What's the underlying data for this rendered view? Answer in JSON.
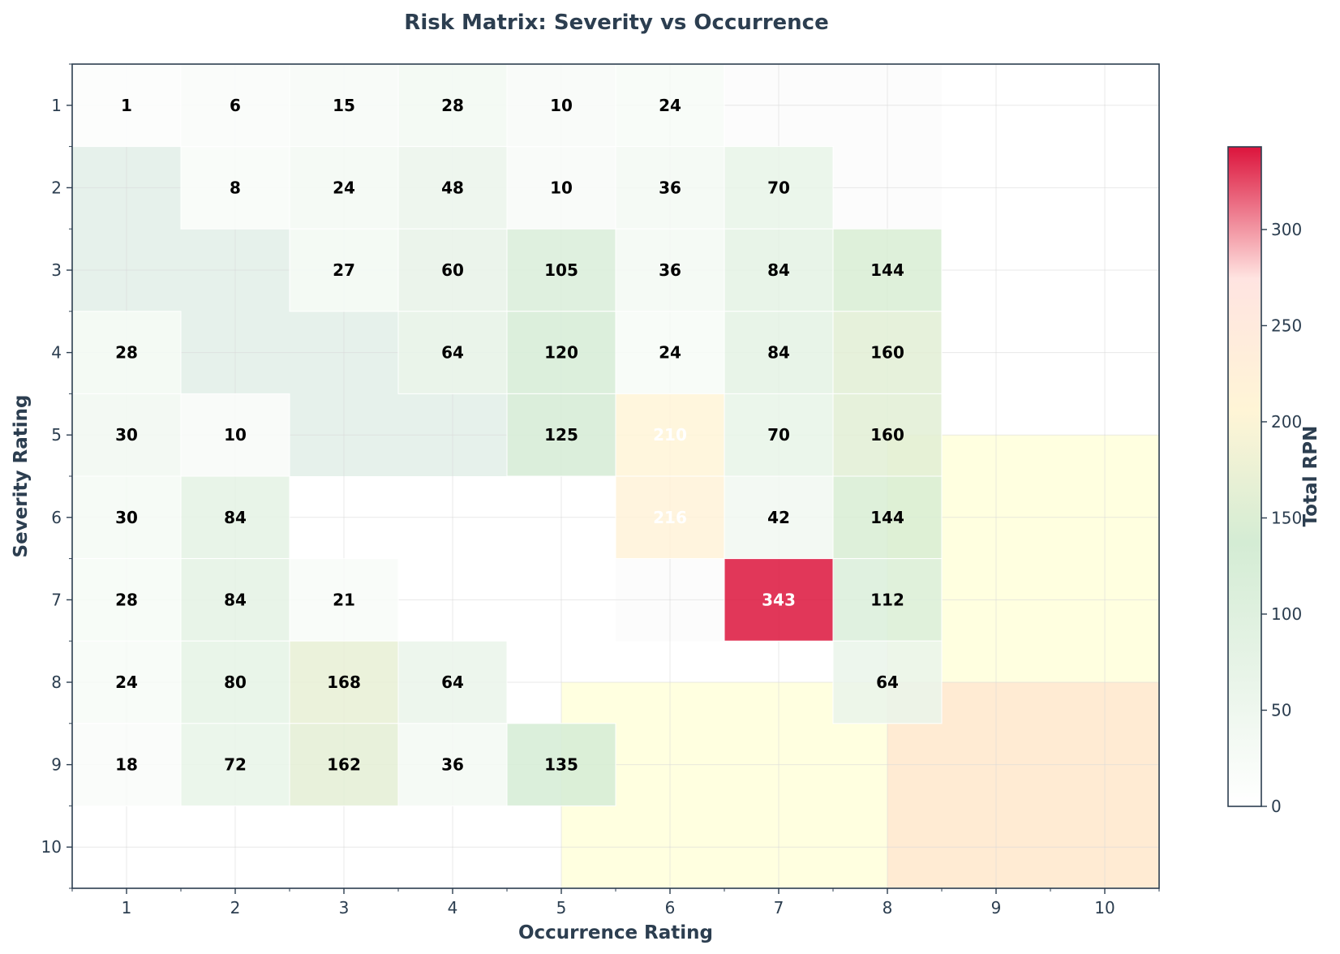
{
  "chart_data": {
    "type": "heatmap",
    "title": "Risk Matrix: Severity vs Occurrence",
    "xlabel": "Occurrence Rating",
    "ylabel": "Severity Rating",
    "x_ticks": [
      1,
      2,
      3,
      4,
      5,
      6,
      7,
      8,
      9,
      10
    ],
    "y_ticks": [
      1,
      2,
      3,
      4,
      5,
      6,
      7,
      8,
      9,
      10
    ],
    "xlim": [
      0.5,
      10.5
    ],
    "ylim": [
      10.5,
      0.5
    ],
    "y_axis_inverted": true,
    "grid": true,
    "colorbar": {
      "label": "Total RPN",
      "min": 0,
      "max": 343,
      "ticks": [
        0,
        50,
        100,
        150,
        200,
        250,
        300
      ],
      "colors": [
        "#ffffff",
        "#e8f4e8",
        "#d4ecd4",
        "#fff5d6",
        "#ffe4e1",
        "#dc143c"
      ]
    },
    "zones": [
      {
        "x": [
          0.5,
          5.5
        ],
        "y": [
          0.5,
          5.5
        ],
        "color": "#2e8b57",
        "level": "low"
      },
      {
        "x": [
          5.5,
          8.5
        ],
        "y": [
          0.5,
          7.5
        ],
        "color": "#c8c8c8",
        "level": "medium-low"
      },
      {
        "x": [
          5,
          10.5
        ],
        "y": [
          8,
          10.5
        ],
        "color": "#ffff66",
        "level": "medium"
      },
      {
        "x": [
          8,
          10.5
        ],
        "y": [
          5,
          8
        ],
        "color": "#ffff66",
        "level": "medium"
      },
      {
        "x": [
          8,
          10.5
        ],
        "y": [
          8,
          10.5
        ],
        "color": "#ff9aa2",
        "level": "high"
      }
    ],
    "cells": [
      {
        "occurrence": 1,
        "severity": 1,
        "rpn": 1
      },
      {
        "occurrence": 2,
        "severity": 1,
        "rpn": 6
      },
      {
        "occurrence": 3,
        "severity": 1,
        "rpn": 15
      },
      {
        "occurrence": 4,
        "severity": 1,
        "rpn": 28
      },
      {
        "occurrence": 5,
        "severity": 1,
        "rpn": 10
      },
      {
        "occurrence": 6,
        "severity": 1,
        "rpn": 24
      },
      {
        "occurrence": 2,
        "severity": 2,
        "rpn": 8
      },
      {
        "occurrence": 3,
        "severity": 2,
        "rpn": 24
      },
      {
        "occurrence": 4,
        "severity": 2,
        "rpn": 48
      },
      {
        "occurrence": 5,
        "severity": 2,
        "rpn": 10
      },
      {
        "occurrence": 6,
        "severity": 2,
        "rpn": 36
      },
      {
        "occurrence": 7,
        "severity": 2,
        "rpn": 70
      },
      {
        "occurrence": 3,
        "severity": 3,
        "rpn": 27
      },
      {
        "occurrence": 4,
        "severity": 3,
        "rpn": 60
      },
      {
        "occurrence": 5,
        "severity": 3,
        "rpn": 105
      },
      {
        "occurrence": 6,
        "severity": 3,
        "rpn": 36
      },
      {
        "occurrence": 7,
        "severity": 3,
        "rpn": 84
      },
      {
        "occurrence": 8,
        "severity": 3,
        "rpn": 144
      },
      {
        "occurrence": 1,
        "severity": 4,
        "rpn": 28
      },
      {
        "occurrence": 4,
        "severity": 4,
        "rpn": 64
      },
      {
        "occurrence": 5,
        "severity": 4,
        "rpn": 120
      },
      {
        "occurrence": 6,
        "severity": 4,
        "rpn": 24
      },
      {
        "occurrence": 7,
        "severity": 4,
        "rpn": 84
      },
      {
        "occurrence": 8,
        "severity": 4,
        "rpn": 160
      },
      {
        "occurrence": 1,
        "severity": 5,
        "rpn": 30
      },
      {
        "occurrence": 2,
        "severity": 5,
        "rpn": 10
      },
      {
        "occurrence": 5,
        "severity": 5,
        "rpn": 125
      },
      {
        "occurrence": 6,
        "severity": 5,
        "rpn": 210
      },
      {
        "occurrence": 7,
        "severity": 5,
        "rpn": 70
      },
      {
        "occurrence": 8,
        "severity": 5,
        "rpn": 160
      },
      {
        "occurrence": 1,
        "severity": 6,
        "rpn": 30
      },
      {
        "occurrence": 2,
        "severity": 6,
        "rpn": 84
      },
      {
        "occurrence": 6,
        "severity": 6,
        "rpn": 216
      },
      {
        "occurrence": 7,
        "severity": 6,
        "rpn": 42
      },
      {
        "occurrence": 8,
        "severity": 6,
        "rpn": 144
      },
      {
        "occurrence": 1,
        "severity": 7,
        "rpn": 28
      },
      {
        "occurrence": 2,
        "severity": 7,
        "rpn": 84
      },
      {
        "occurrence": 3,
        "severity": 7,
        "rpn": 21
      },
      {
        "occurrence": 7,
        "severity": 7,
        "rpn": 343
      },
      {
        "occurrence": 8,
        "severity": 7,
        "rpn": 112
      },
      {
        "occurrence": 1,
        "severity": 8,
        "rpn": 24
      },
      {
        "occurrence": 2,
        "severity": 8,
        "rpn": 80
      },
      {
        "occurrence": 3,
        "severity": 8,
        "rpn": 168
      },
      {
        "occurrence": 4,
        "severity": 8,
        "rpn": 64
      },
      {
        "occurrence": 8,
        "severity": 8,
        "rpn": 64
      },
      {
        "occurrence": 1,
        "severity": 9,
        "rpn": 18
      },
      {
        "occurrence": 2,
        "severity": 9,
        "rpn": 72
      },
      {
        "occurrence": 3,
        "severity": 9,
        "rpn": 162
      },
      {
        "occurrence": 4,
        "severity": 9,
        "rpn": 36
      },
      {
        "occurrence": 5,
        "severity": 9,
        "rpn": 135
      }
    ]
  },
  "colors": {
    "title": "#2c3e50",
    "axis": "#2c3e50",
    "label_dark": "#000000",
    "label_light": "#ffffff"
  }
}
